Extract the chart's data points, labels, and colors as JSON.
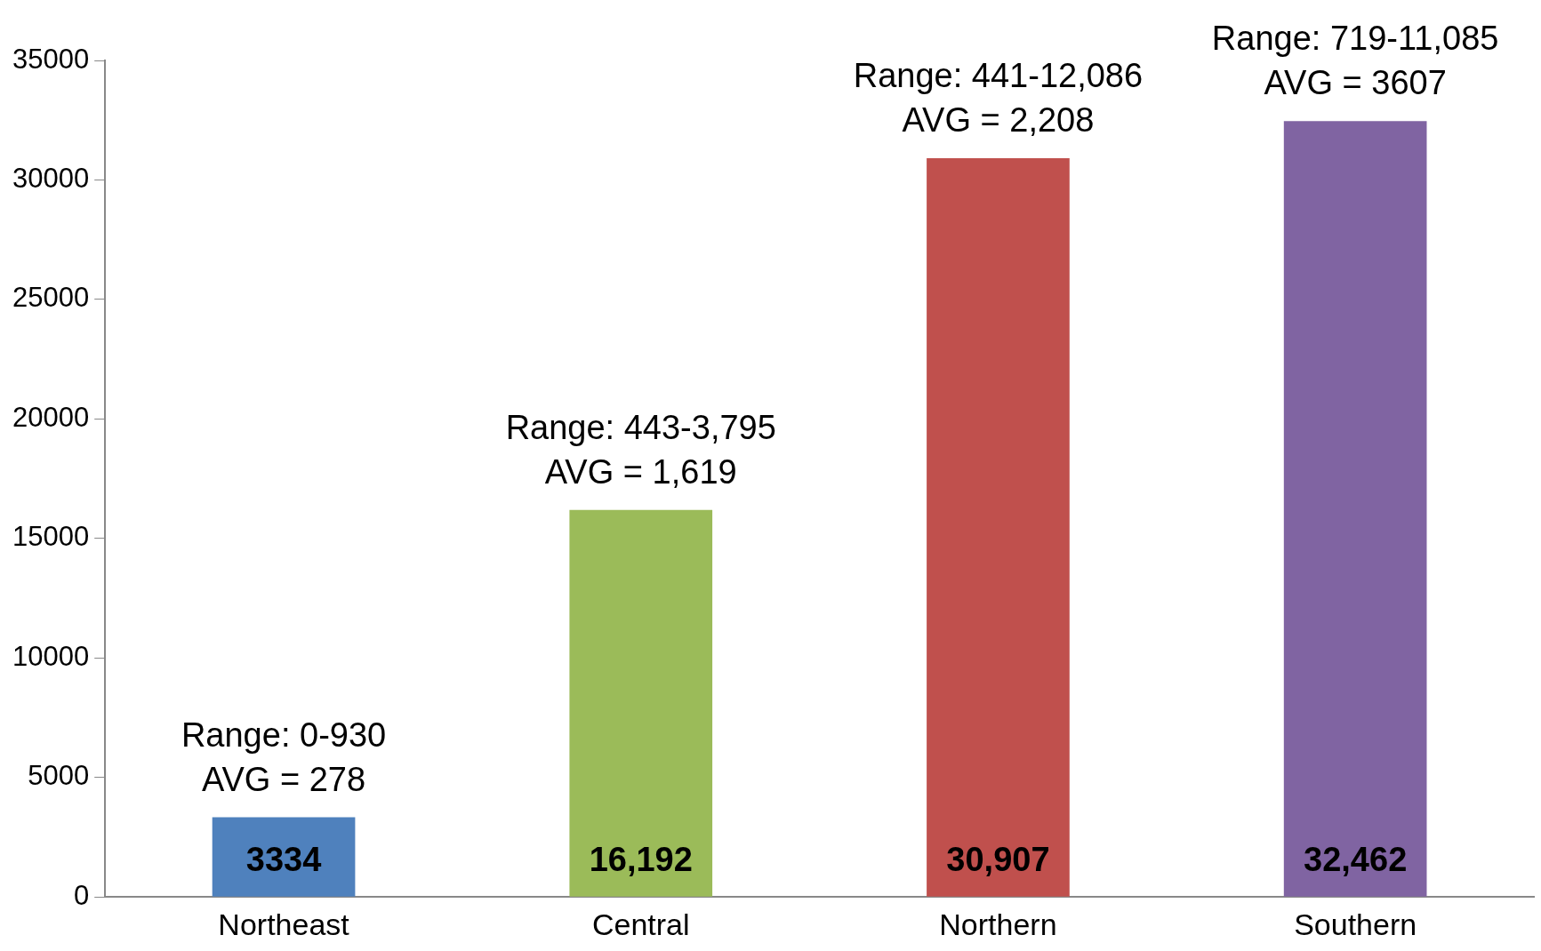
{
  "chart_data": {
    "type": "bar",
    "categories": [
      "Northeast",
      "Central",
      "Northern",
      "Southern"
    ],
    "values": [
      3334,
      16192,
      30907,
      32462
    ],
    "colors": [
      "#4f81bd",
      "#9bbb59",
      "#c0504d",
      "#8064a2"
    ],
    "value_labels": [
      "3334",
      "16,192",
      "30,907",
      "32,462"
    ],
    "ylim": [
      0,
      35000
    ],
    "yticks": [
      0,
      5000,
      10000,
      15000,
      20000,
      25000,
      30000,
      35000
    ],
    "grid": false,
    "legend": false,
    "annotations": [
      {
        "text": "Range: 0-930\nAVG = 278",
        "x": "Northeast",
        "y": 3334
      },
      {
        "text": "Range: 443-3,795\nAVG = 1,619",
        "x": "Central",
        "y": 16192
      },
      {
        "text": "Range: 441-12,086\nAVG = 2,208",
        "x": "Northern",
        "y": 30907
      },
      {
        "text": "Range: 719-11,085\nAVG = 3607",
        "x": "Southern",
        "y": 32462
      }
    ]
  }
}
